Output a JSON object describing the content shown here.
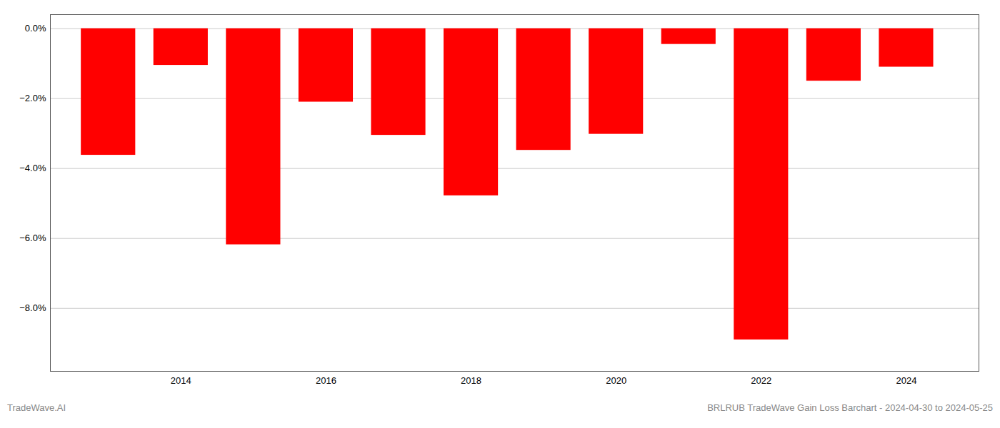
{
  "chart_data": {
    "type": "bar",
    "x": [
      2013,
      2014,
      2015,
      2016,
      2017,
      2018,
      2019,
      2020,
      2021,
      2022,
      2023,
      2024
    ],
    "values": [
      -3.62,
      -1.05,
      -6.18,
      -2.1,
      -3.05,
      -4.78,
      -3.48,
      -3.02,
      -0.45,
      -8.9,
      -1.5,
      -1.1
    ],
    "color": "#ff0000",
    "xlim": [
      2012.2,
      2025.0
    ],
    "xticks": [
      2014,
      2016,
      2018,
      2020,
      2022,
      2024
    ],
    "ylim": [
      -9.8,
      0.4
    ],
    "yticks": [
      {
        "value": 0.0,
        "label": "0.0%"
      },
      {
        "value": -2.0,
        "label": "−2.0%"
      },
      {
        "value": -4.0,
        "label": "−4.0%"
      },
      {
        "value": -6.0,
        "label": "−6.0%"
      },
      {
        "value": -8.0,
        "label": "−8.0%"
      }
    ],
    "grid": true,
    "annotations": [
      "TradeWave.AI",
      "BRLRUB TradeWave Gain Loss Barchart - 2024-04-30 to 2024-05-25"
    ]
  }
}
